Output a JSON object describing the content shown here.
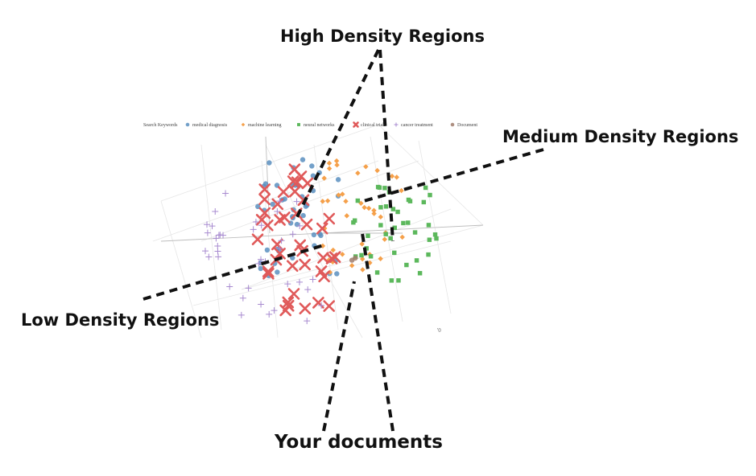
{
  "chart_data": {
    "type": "scatter",
    "title": "",
    "projection": "3d",
    "legend_title": "Search Keywords",
    "legend_position": "top",
    "grid": true,
    "series": [
      {
        "name": "medical diagnosis",
        "marker": "circle",
        "color": "#5b8fbf"
      },
      {
        "name": "machine learning",
        "marker": "diamond",
        "color": "#f5a04a"
      },
      {
        "name": "neural networks",
        "marker": "square",
        "color": "#5cb85c"
      },
      {
        "name": "clinical trials",
        "marker": "x",
        "color": "#e05a5a"
      },
      {
        "name": "cancer treatment",
        "marker": "plus",
        "color": "#a88bd0"
      },
      {
        "name": "Document",
        "marker": "circle",
        "color": "#a07c6c"
      }
    ],
    "corner_tick": "'0"
  },
  "annotations": {
    "high": "High Density Regions",
    "medium": "Medium Density Regions",
    "low": "Low Density Regions",
    "docs": "Your documents"
  }
}
